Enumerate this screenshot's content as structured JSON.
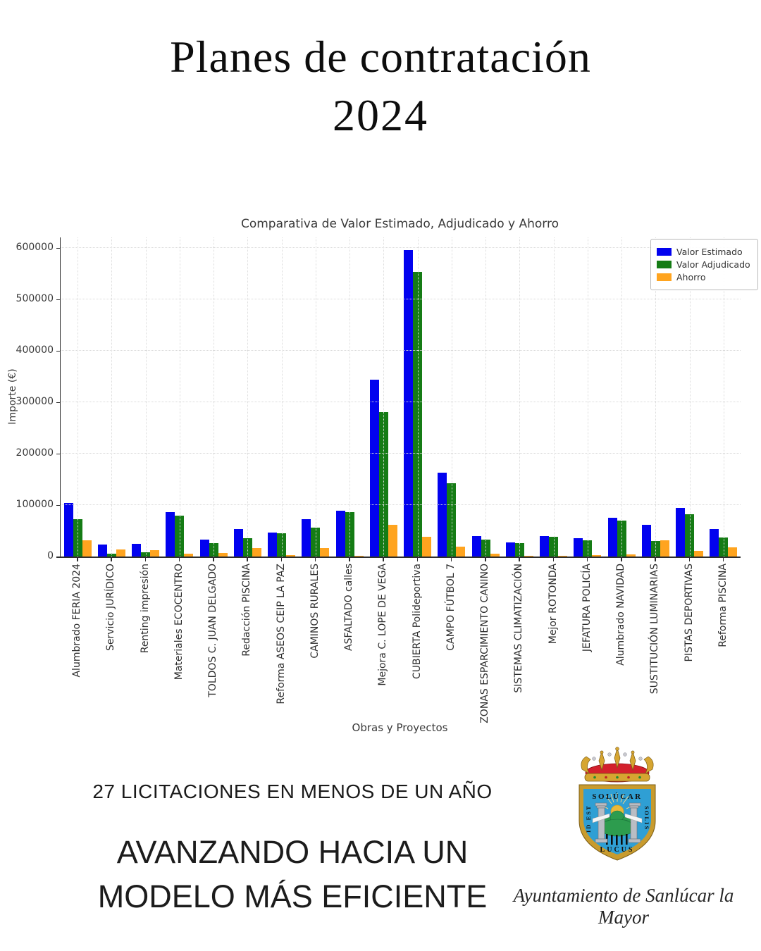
{
  "header": {
    "title_line1": "Planes de contratación",
    "title_line2": "2024"
  },
  "chart_data": {
    "type": "bar",
    "title": "Comparativa de Valor Estimado, Adjudicado y Ahorro",
    "xlabel": "Obras y Proyectos",
    "ylabel": "Importe (€)",
    "ylim": [
      0,
      620000
    ],
    "yticks": [
      0,
      100000,
      200000,
      300000,
      400000,
      500000,
      600000
    ],
    "grid": true,
    "legend_position": "upper right",
    "categories": [
      "Alumbrado FERIA 2024",
      "Servicio JURÍDICO",
      "Renting impresión",
      "Materiales ECOCENTRO",
      "TOLDOS C. JUAN DELGADO",
      "Redacción PISCINA",
      "Reforma ASEOS CEIP LA PAZ",
      "CAMINOS RURALES",
      "ASFALTADO calles",
      "Mejora C. LOPE DE VEGA",
      "CUBIERTA Polideportiva",
      "CAMPO FÚTBOL 7",
      "ZONAS ESPARCIMIENTO CANINO",
      "SISTEMAS CLIMATIZACIÓN",
      "Mejor ROTONDA",
      "JEFATURA POLICÍA",
      "Alumbrado NAVIDAD",
      "SUSTITUCIÓN LUMINARIAS",
      "PISTAS DEPORTIVAS",
      "Reforma PISCINA"
    ],
    "series": [
      {
        "name": "Valor Estimado",
        "color": "#0202ef",
        "values": [
          104000,
          23000,
          25000,
          86000,
          33000,
          54000,
          47000,
          72000,
          89000,
          343000,
          595000,
          163000,
          40000,
          27000,
          40000,
          36000,
          75000,
          62000,
          95000,
          54000
        ]
      },
      {
        "name": "Valor Adjudicado",
        "color": "#157c15",
        "values": [
          72000,
          6000,
          8000,
          80000,
          26000,
          36000,
          45000,
          56000,
          86000,
          281000,
          553000,
          142000,
          33000,
          26000,
          38000,
          32000,
          70000,
          30000,
          82000,
          37000
        ]
      },
      {
        "name": "Ahorro",
        "color": "#ffa41f",
        "values": [
          31000,
          14000,
          12000,
          6000,
          7000,
          17000,
          3000,
          16000,
          2000,
          62000,
          38000,
          19000,
          6000,
          1000,
          2000,
          3000,
          4000,
          32000,
          11000,
          18000
        ]
      }
    ]
  },
  "footer": {
    "stat_line": "27 LICITACIONES EN MENOS DE UN AÑO",
    "slogan_line1": "AVANZANDO HACIA UN",
    "slogan_line2": "MODELO MÁS EFICIENTE",
    "org_caption": "Ayuntamiento de Sanlúcar la Mayor"
  },
  "logo": {
    "name": "escudo-sanlucar-la-mayor",
    "motto_top": "SOLÚCAR",
    "motto_left": "ID EST",
    "motto_right": "SOLIS",
    "motto_bottom": "LUCUS",
    "colors": {
      "shield_blue": "#2f9fd4",
      "border_gold": "#c89b2e",
      "crown_gold": "#d6a531",
      "band_red": "#d3202c",
      "tree_green": "#2d9c4e",
      "column_grey": "#b9bdc4",
      "sun_yellow": "#e9b93b"
    }
  }
}
